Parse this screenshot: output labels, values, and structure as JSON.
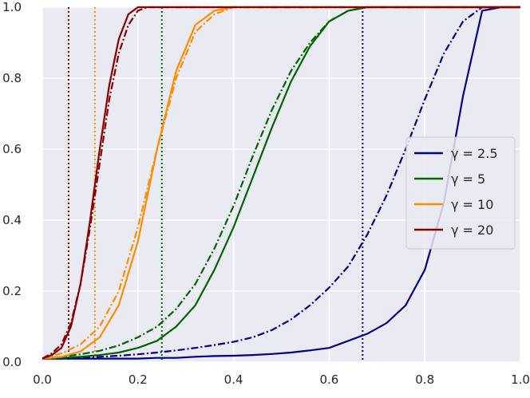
{
  "chart_data": {
    "type": "line",
    "title": "",
    "xlabel": "",
    "ylabel": "",
    "xlim": [
      0.0,
      1.0
    ],
    "ylim": [
      0.0,
      1.0
    ],
    "xticks": [
      "0.0",
      "0.2",
      "0.4",
      "0.6",
      "0.8",
      "1.0"
    ],
    "yticks": [
      "0.0",
      "0.2",
      "0.4",
      "0.6",
      "0.8",
      "1.0"
    ],
    "grid": true,
    "background_color": "#eaeaf2",
    "legend_position": "center-right",
    "line_styles": {
      "solid": "solid",
      "dashdot": "dash-dot",
      "vline": "dotted"
    },
    "series": [
      {
        "name": "γ = 2.5",
        "color": "#00008b",
        "threshold_x": 0.67,
        "solid": {
          "x": [
            0.0,
            0.04,
            0.08,
            0.12,
            0.16,
            0.2,
            0.24,
            0.28,
            0.32,
            0.36,
            0.4,
            0.44,
            0.48,
            0.52,
            0.56,
            0.6,
            0.64,
            0.68,
            0.72,
            0.76,
            0.8,
            0.84,
            0.88,
            0.92,
            0.96,
            1.0
          ],
          "y": [
            0.01,
            0.01,
            0.01,
            0.01,
            0.01,
            0.01,
            0.012,
            0.012,
            0.015,
            0.017,
            0.018,
            0.02,
            0.023,
            0.027,
            0.033,
            0.04,
            0.06,
            0.08,
            0.11,
            0.16,
            0.26,
            0.45,
            0.75,
            0.99,
            1.0,
            1.0
          ]
        },
        "dashdot": {
          "x": [
            0.0,
            0.04,
            0.08,
            0.12,
            0.16,
            0.2,
            0.24,
            0.28,
            0.32,
            0.36,
            0.4,
            0.44,
            0.48,
            0.52,
            0.56,
            0.6,
            0.64,
            0.68,
            0.72,
            0.76,
            0.8,
            0.84,
            0.88,
            0.92,
            0.96,
            1.0
          ],
          "y": [
            0.01,
            0.01,
            0.012,
            0.015,
            0.018,
            0.022,
            0.027,
            0.033,
            0.04,
            0.048,
            0.057,
            0.07,
            0.09,
            0.12,
            0.16,
            0.21,
            0.27,
            0.36,
            0.47,
            0.6,
            0.74,
            0.87,
            0.96,
            1.0,
            1.0,
            1.0
          ]
        }
      },
      {
        "name": "γ = 5",
        "color": "#006400",
        "threshold_x": 0.25,
        "solid": {
          "x": [
            0.0,
            0.04,
            0.08,
            0.12,
            0.16,
            0.2,
            0.24,
            0.28,
            0.32,
            0.36,
            0.4,
            0.44,
            0.48,
            0.52,
            0.56,
            0.6,
            0.64,
            0.68,
            0.72,
            1.0
          ],
          "y": [
            0.01,
            0.012,
            0.015,
            0.02,
            0.027,
            0.04,
            0.06,
            0.1,
            0.16,
            0.26,
            0.38,
            0.52,
            0.66,
            0.79,
            0.89,
            0.96,
            0.99,
            1.0,
            1.0,
            1.0
          ]
        },
        "dashdot": {
          "x": [
            0.0,
            0.04,
            0.08,
            0.12,
            0.16,
            0.2,
            0.24,
            0.28,
            0.32,
            0.36,
            0.4,
            0.44,
            0.48,
            0.52,
            0.56,
            0.6,
            0.64,
            0.68,
            0.72,
            1.0
          ],
          "y": [
            0.01,
            0.015,
            0.022,
            0.032,
            0.047,
            0.07,
            0.1,
            0.15,
            0.22,
            0.32,
            0.44,
            0.58,
            0.71,
            0.82,
            0.9,
            0.96,
            0.99,
            1.0,
            1.0,
            1.0
          ]
        }
      },
      {
        "name": "γ = 10",
        "color": "#ff8c00",
        "threshold_x": 0.11,
        "solid": {
          "x": [
            0.0,
            0.04,
            0.08,
            0.12,
            0.16,
            0.2,
            0.24,
            0.28,
            0.32,
            0.36,
            0.4,
            1.0
          ],
          "y": [
            0.01,
            0.015,
            0.03,
            0.07,
            0.16,
            0.34,
            0.6,
            0.82,
            0.95,
            0.99,
            1.0,
            1.0
          ]
        },
        "dashdot": {
          "x": [
            0.0,
            0.04,
            0.08,
            0.12,
            0.16,
            0.2,
            0.24,
            0.28,
            0.32,
            0.36,
            0.4,
            1.0
          ],
          "y": [
            0.01,
            0.025,
            0.05,
            0.1,
            0.2,
            0.38,
            0.6,
            0.8,
            0.93,
            0.98,
            1.0,
            1.0
          ]
        }
      },
      {
        "name": "γ = 20",
        "color": "#8b0000",
        "threshold_x": 0.055,
        "solid": {
          "x": [
            0.0,
            0.02,
            0.04,
            0.06,
            0.08,
            0.1,
            0.12,
            0.14,
            0.16,
            0.18,
            0.2,
            0.22,
            0.24,
            1.0
          ],
          "y": [
            0.01,
            0.02,
            0.04,
            0.1,
            0.22,
            0.4,
            0.6,
            0.78,
            0.91,
            0.98,
            1.0,
            1.0,
            1.0,
            1.0
          ]
        },
        "dashdot": {
          "x": [
            0.0,
            0.02,
            0.04,
            0.06,
            0.08,
            0.1,
            0.12,
            0.14,
            0.16,
            0.18,
            0.2,
            0.22,
            0.24,
            1.0
          ],
          "y": [
            0.01,
            0.025,
            0.05,
            0.11,
            0.22,
            0.38,
            0.56,
            0.74,
            0.87,
            0.95,
            0.99,
            1.0,
            1.0,
            1.0
          ]
        }
      }
    ]
  }
}
